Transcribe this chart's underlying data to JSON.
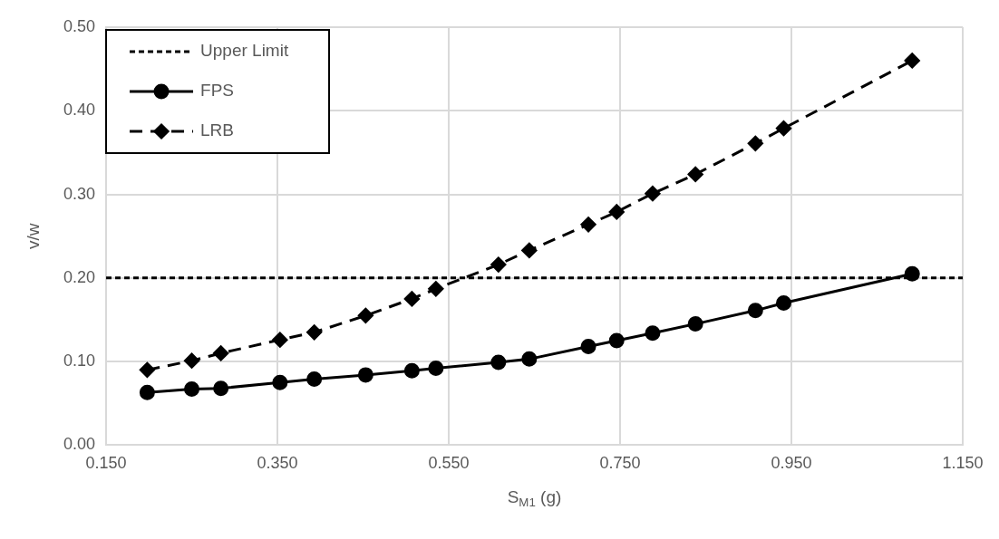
{
  "chart_data": {
    "type": "line",
    "xlabel": "S$_{M1}$ (g)",
    "ylabel": "v/w",
    "xlim": [
      0.15,
      1.15
    ],
    "xticks": [
      {
        "value": 0.15,
        "label": "0.150"
      },
      {
        "value": 0.35,
        "label": "0.350"
      },
      {
        "value": 0.55,
        "label": "0.550"
      },
      {
        "value": 0.75,
        "label": "0.750"
      },
      {
        "value": 0.95,
        "label": "0.950"
      },
      {
        "value": 1.15,
        "label": "1.150"
      }
    ],
    "ylim": [
      0,
      0.5
    ],
    "yticks": [
      {
        "value": 0,
        "label": "0.00"
      },
      {
        "value": 0.1,
        "label": "0.10"
      },
      {
        "value": 0.2,
        "label": "0.20"
      },
      {
        "value": 0.3,
        "label": "0.30"
      },
      {
        "value": 0.4,
        "label": "0.40"
      },
      {
        "value": 0.5,
        "label": "0.50"
      }
    ],
    "grid": true,
    "legend": "top left",
    "series": [
      {
        "name": "Upper Limit",
        "color": "#000000",
        "line_style": "dotted",
        "marker": "none",
        "x": [
          0.15,
          1.15
        ],
        "values": [
          0.2,
          0.2
        ]
      },
      {
        "name": "FPS",
        "color": "#000000",
        "line_style": "solid",
        "marker": "circle",
        "x": [
          0.198,
          0.25,
          0.284,
          0.353,
          0.393,
          0.453,
          0.507,
          0.535,
          0.608,
          0.644,
          0.713,
          0.746,
          0.788,
          0.838,
          0.908,
          0.941,
          1.091
        ],
        "values": [
          0.063,
          0.067,
          0.068,
          0.075,
          0.079,
          0.084,
          0.089,
          0.092,
          0.099,
          0.103,
          0.118,
          0.125,
          0.134,
          0.145,
          0.161,
          0.17,
          0.205
        ]
      },
      {
        "name": "LRB",
        "color": "#000000",
        "line_style": "dashed",
        "marker": "diamond",
        "x": [
          0.198,
          0.25,
          0.284,
          0.353,
          0.393,
          0.453,
          0.507,
          0.535,
          0.608,
          0.644,
          0.713,
          0.746,
          0.788,
          0.838,
          0.908,
          0.941,
          1.091
        ],
        "values": [
          0.09,
          0.101,
          0.11,
          0.126,
          0.135,
          0.155,
          0.175,
          0.187,
          0.216,
          0.233,
          0.264,
          0.279,
          0.301,
          0.324,
          0.361,
          0.379,
          0.46
        ]
      }
    ]
  }
}
